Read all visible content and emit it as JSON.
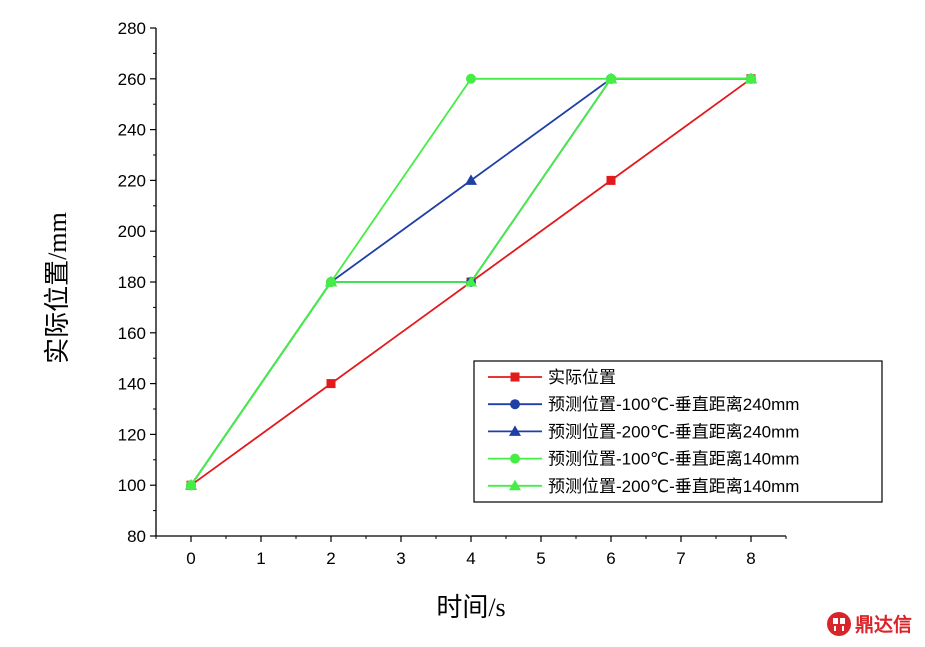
{
  "chart_data": {
    "type": "line",
    "xlabel": "时间/s",
    "ylabel": "实际位置/mm",
    "xlim": [
      -0.5,
      8.5
    ],
    "ylim": [
      80,
      280
    ],
    "xticks": [
      0,
      1,
      2,
      3,
      4,
      5,
      6,
      7,
      8
    ],
    "yticks": [
      80,
      100,
      120,
      140,
      160,
      180,
      200,
      220,
      240,
      260,
      280
    ],
    "grid": false,
    "legend_position": "bottom-right",
    "series": [
      {
        "name": "实际位置",
        "color": "#e31a1c",
        "marker": "square",
        "x": [
          0,
          2,
          4,
          6,
          8
        ],
        "y": [
          100,
          140,
          180,
          220,
          260
        ]
      },
      {
        "name": "预测位置-100℃-垂直距离240mm",
        "color": "#1f3fa6",
        "marker": "circle",
        "x": [
          0,
          2,
          4,
          6,
          8
        ],
        "y": [
          100,
          180,
          180,
          260,
          260
        ]
      },
      {
        "name": "预测位置-200℃-垂直距离240mm",
        "color": "#1f3fa6",
        "marker": "triangle",
        "x": [
          0,
          2,
          4,
          6,
          8
        ],
        "y": [
          100,
          180,
          220,
          260,
          260
        ]
      },
      {
        "name": "预测位置-100℃-垂直距离140mm",
        "color": "#44ee44",
        "marker": "circle",
        "x": [
          0,
          2,
          4,
          6,
          8
        ],
        "y": [
          100,
          180,
          260,
          260,
          260
        ]
      },
      {
        "name": "预测位置-200℃-垂直距离140mm",
        "color": "#44ee44",
        "marker": "triangle",
        "x": [
          0,
          2,
          4,
          6,
          8
        ],
        "y": [
          100,
          180,
          180,
          260,
          260
        ]
      }
    ]
  },
  "watermark": {
    "text": "鼎达信",
    "color": "#d9252a"
  }
}
